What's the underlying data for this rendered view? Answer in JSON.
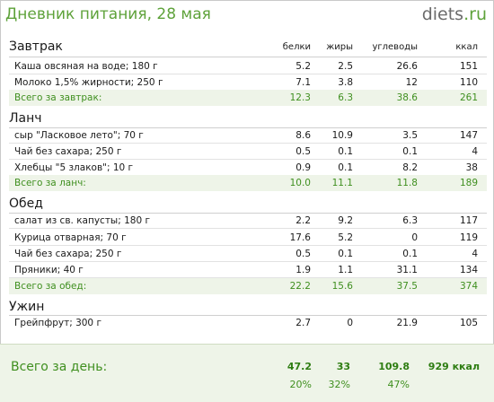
{
  "header": {
    "title": "Дневник питания, 28 мая",
    "logo_main": "diets",
    "logo_tld": ".ru"
  },
  "columns": [
    "белки",
    "жиры",
    "углеводы",
    "ккал"
  ],
  "sections": [
    {
      "title": "Завтрак",
      "items": [
        {
          "name": "Каша овсяная на воде; 180 г",
          "values": [
            "5.2",
            "2.5",
            "26.6",
            "151"
          ]
        },
        {
          "name": "Молоко 1,5% жирности; 250 г",
          "values": [
            "7.1",
            "3.8",
            "12",
            "110"
          ]
        }
      ],
      "total": {
        "name": "Всего за завтрак:",
        "values": [
          "12.3",
          "6.3",
          "38.6",
          "261"
        ]
      }
    },
    {
      "title": "Ланч",
      "items": [
        {
          "name": "сыр \"Ласковое лето\"; 70 г",
          "values": [
            "8.6",
            "10.9",
            "3.5",
            "147"
          ]
        },
        {
          "name": "Чай без сахара; 250 г",
          "values": [
            "0.5",
            "0.1",
            "0.1",
            "4"
          ]
        },
        {
          "name": "Хлебцы \"5 злаков\"; 10 г",
          "values": [
            "0.9",
            "0.1",
            "8.2",
            "38"
          ]
        }
      ],
      "total": {
        "name": "Всего за ланч:",
        "values": [
          "10.0",
          "11.1",
          "11.8",
          "189"
        ]
      }
    },
    {
      "title": "Обед",
      "items": [
        {
          "name": "салат из св. капусты; 180 г",
          "values": [
            "2.2",
            "9.2",
            "6.3",
            "117"
          ]
        },
        {
          "name": "Курица отварная; 70 г",
          "values": [
            "17.6",
            "5.2",
            "0",
            "119"
          ]
        },
        {
          "name": "Чай без сахара; 250 г",
          "values": [
            "0.5",
            "0.1",
            "0.1",
            "4"
          ]
        },
        {
          "name": "Пряники; 40 г",
          "values": [
            "1.9",
            "1.1",
            "31.1",
            "134"
          ]
        }
      ],
      "total": {
        "name": "Всего за обед:",
        "values": [
          "22.2",
          "15.6",
          "37.5",
          "374"
        ]
      }
    },
    {
      "title": "Ужин",
      "items": [
        {
          "name": "Грейпфрут; 300 г",
          "values": [
            "2.7",
            "0",
            "21.9",
            "105"
          ]
        }
      ]
    }
  ],
  "day_total": {
    "label": "Всего за день:",
    "values": [
      "47.2",
      "33",
      "109.8",
      "929 ккал"
    ],
    "percents": [
      "20%",
      "32%",
      "47%"
    ]
  },
  "colors": {
    "accent_green": "#5ea23a",
    "total_text": "#3f8f1f",
    "total_bg": "#eef4e8"
  }
}
